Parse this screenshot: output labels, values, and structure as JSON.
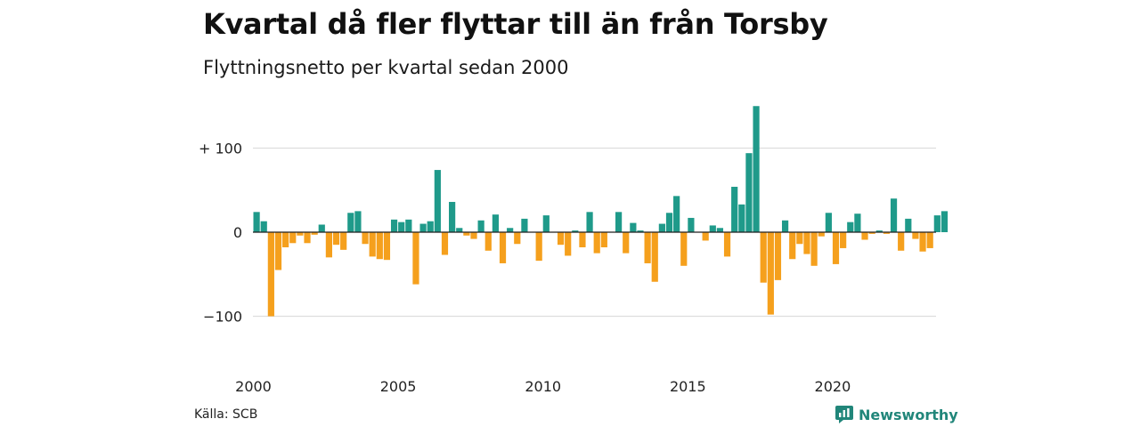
{
  "title": "Kvartal då fler flyttar till än från Torsby",
  "subtitle": "Flyttningsnetto per kvartal sedan 2000",
  "source": "Källa: SCB",
  "brand": {
    "name": "Newsworthy",
    "icon": "newsworthy-logo-icon"
  },
  "colors": {
    "positive": "#1f9a8a",
    "negative": "#f5a01d",
    "grid": "#dddddd",
    "brand": "#21867a"
  },
  "chart_data": {
    "type": "bar",
    "x_start": "2000-Q1",
    "x_ticks": [
      "2000",
      "2005",
      "2010",
      "2015",
      "2020"
    ],
    "y_ticks": [
      {
        "value": 100,
        "label": "+ 100"
      },
      {
        "value": 0,
        "label": "0"
      },
      {
        "value": -100,
        "label": "−100"
      }
    ],
    "ylim": [
      -150,
      150
    ],
    "grid": true,
    "values": [
      24,
      13,
      -100,
      -45,
      -18,
      -13,
      -4,
      -13,
      -3,
      9,
      -30,
      -15,
      -21,
      23,
      25,
      -14,
      -29,
      -32,
      -33,
      15,
      12,
      15,
      -62,
      10,
      13,
      74,
      -27,
      36,
      5,
      -4,
      -8,
      14,
      -22,
      21,
      -37,
      5,
      -14,
      16,
      0,
      -34,
      20,
      0,
      -15,
      -28,
      2,
      -18,
      24,
      -25,
      -18,
      0,
      24,
      -25,
      11,
      2,
      -37,
      -59,
      10,
      23,
      43,
      -40,
      17,
      0,
      -10,
      8,
      5,
      -29,
      54,
      33,
      94,
      150,
      -60,
      -98,
      -57,
      14,
      -32,
      -14,
      -26,
      -40,
      -5,
      23,
      -38,
      -19,
      12,
      22,
      -9,
      -2,
      2,
      -2,
      40,
      -22,
      16,
      -8,
      -23,
      -19,
      20,
      25
    ]
  }
}
